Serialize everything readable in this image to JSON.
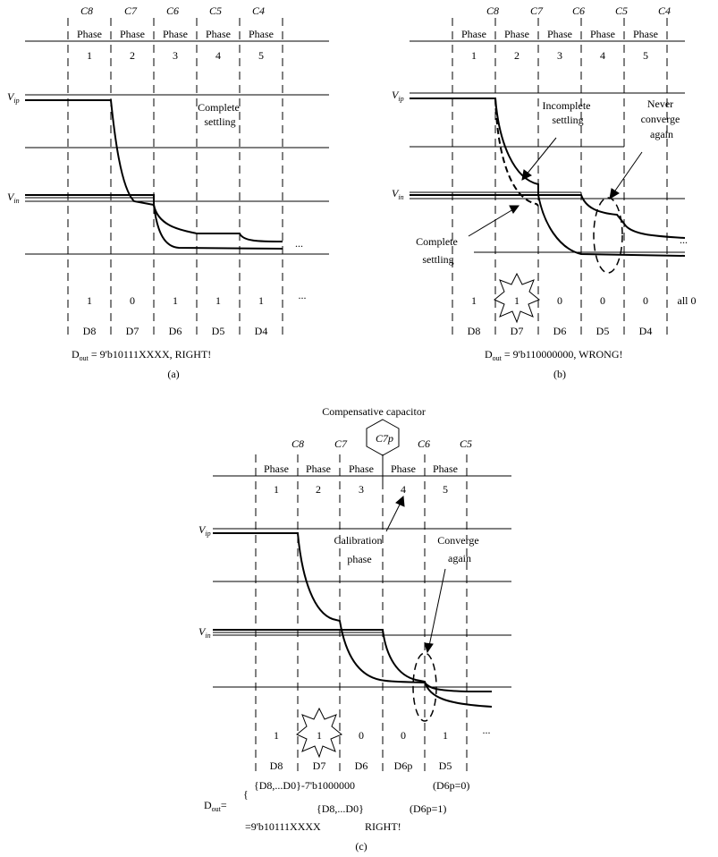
{
  "panels": [
    {
      "caption": "(a)",
      "caps": [
        "C8",
        "C7",
        "C6",
        "C5",
        "C4"
      ],
      "phase_word": "Phase",
      "phase_numbers": [
        "1",
        "2",
        "3",
        "4",
        "5"
      ],
      "vip": "V",
      "vip_sub": "ip",
      "vin": "V",
      "vin_sub": "in",
      "annotations": [
        [
          "Complete",
          "settling"
        ]
      ],
      "bits": [
        "1",
        "0",
        "1",
        "1",
        "1"
      ],
      "bits_tail": "...",
      "wave_tail": "...",
      "d_labels": [
        "D8",
        "D7",
        "D6",
        "D5",
        "D4"
      ],
      "dout_prefix": "D",
      "dout_sub": "out",
      "dout_value": " = 9'b10111XXXX, RIGHT!"
    },
    {
      "caption": "(b)",
      "caps": [
        "C8",
        "C7",
        "C6",
        "C5",
        "C4"
      ],
      "phase_word": "Phase",
      "phase_numbers": [
        "1",
        "2",
        "3",
        "4",
        "5"
      ],
      "vip": "V",
      "vip_sub": "ip",
      "vin": "V",
      "vin_sub": "in",
      "annotations": [
        [
          "Incomplete",
          "settling"
        ],
        [
          "Never",
          "converge",
          "again"
        ],
        [
          "Complete",
          "settling"
        ]
      ],
      "bits": [
        "1",
        "1",
        "0",
        "0",
        "0"
      ],
      "bits_tail": "all 0",
      "wave_tail": "...",
      "d_labels": [
        "D8",
        "D7",
        "D6",
        "D5",
        "D4"
      ],
      "dout_prefix": "D",
      "dout_sub": "out",
      "dout_value": " = 9'b110000000, WRONG!"
    },
    {
      "caption": "(c)",
      "title": "Compensative capacitor",
      "comp_cap": "C7p",
      "caps": [
        "C8",
        "C7",
        "C6",
        "C5"
      ],
      "phase_word": "Phase",
      "phase_numbers": [
        "1",
        "2",
        "3",
        "4",
        "5"
      ],
      "vip": "V",
      "vip_sub": "ip",
      "vin": "V",
      "vin_sub": "in",
      "annotations": [
        [
          "Calibration",
          "phase"
        ],
        [
          "Converge",
          "again"
        ]
      ],
      "bits": [
        "1",
        "1",
        "0",
        "0",
        "1"
      ],
      "bits_tail": "...",
      "d_labels": [
        "D8",
        "D7",
        "D6",
        "D6p",
        "D5"
      ],
      "dout_prefix": "D",
      "dout_sub": "out",
      "dout_eq": "=",
      "formula_line1": "{D8,...D0}-7'b1000000",
      "formula_cond1": "(D6p=0)",
      "formula_line2": "{D8,...D0}",
      "formula_cond2": "(D6p=1)",
      "formula_result": "=9'b10111XXXX",
      "formula_right": "RIGHT!"
    }
  ]
}
